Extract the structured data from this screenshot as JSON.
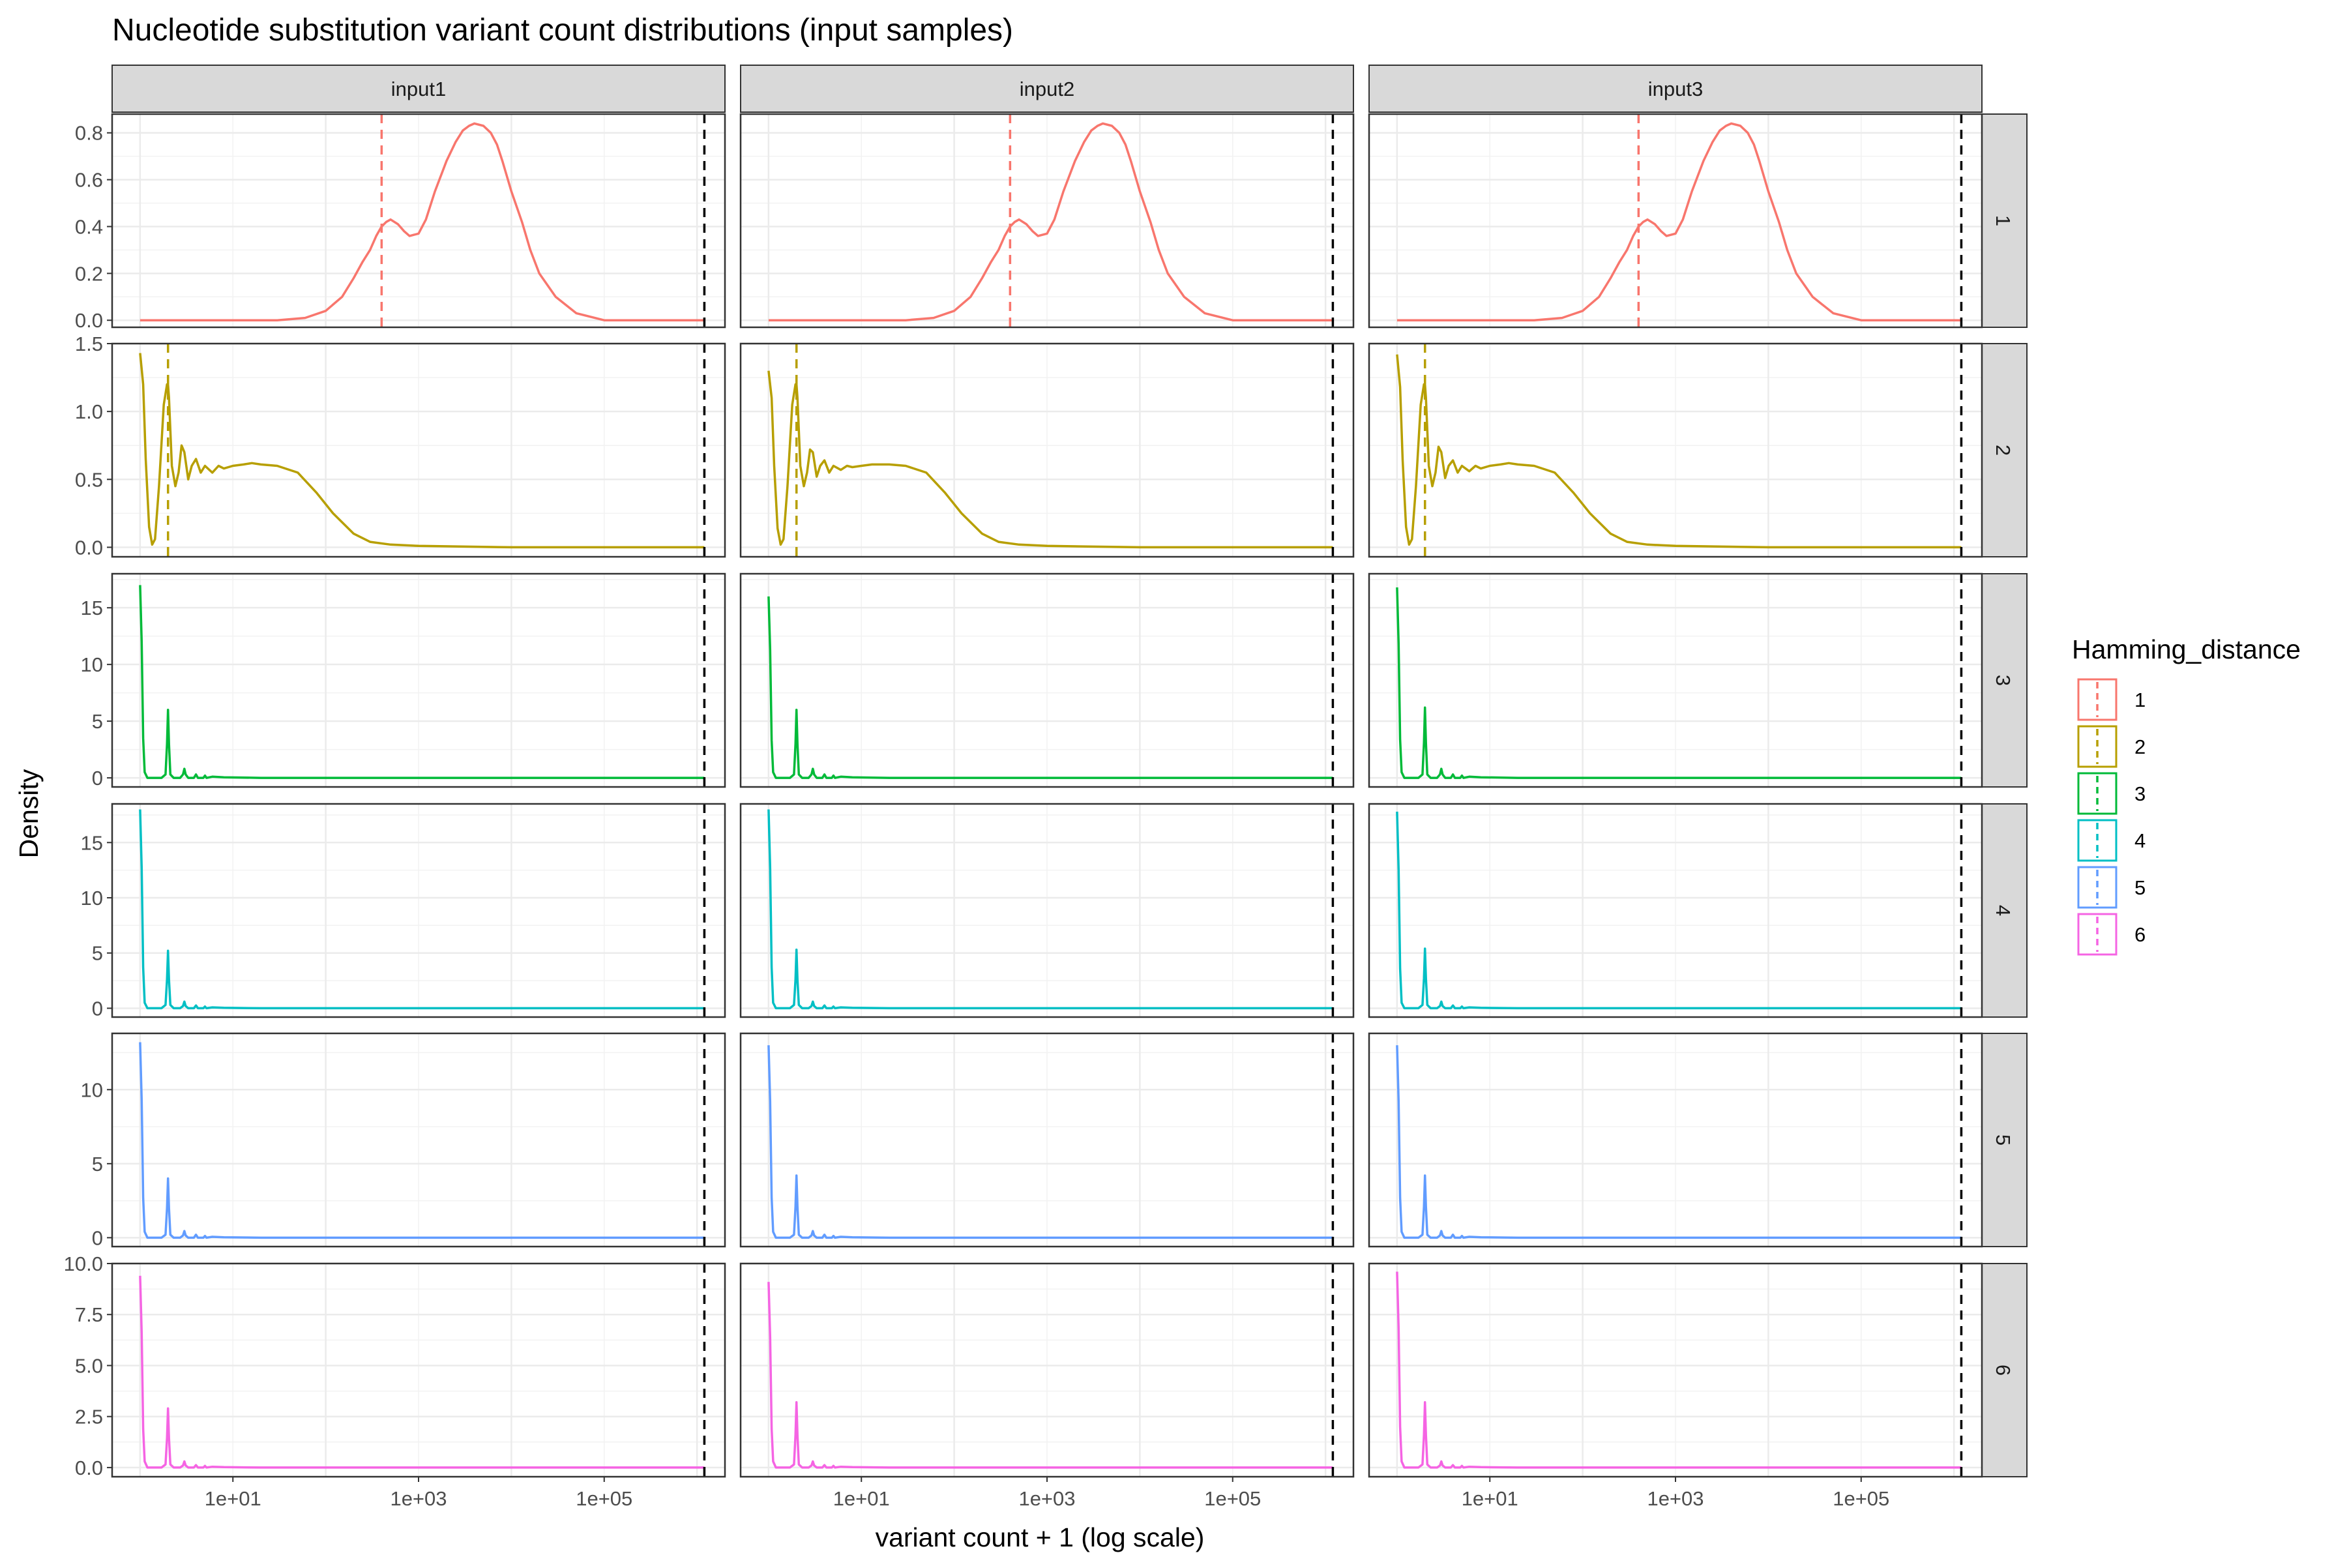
{
  "chart_data": {
    "type": "line",
    "chart_kind": "faceted density plot",
    "title": "Nucleotide substitution variant count distributions (input samples)",
    "xlabel": "variant count + 1 (log scale)",
    "ylabel": "Density",
    "x_scale": "log10",
    "xlim": [
      0.5,
      2000000
    ],
    "x_ticks": [
      10,
      1000,
      100000
    ],
    "x_tick_labels": [
      "1e+01",
      "1e+03",
      "1e+05"
    ],
    "grid": true,
    "theme": "bw",
    "column_facets": [
      "input1",
      "input2",
      "input3"
    ],
    "row_facets": [
      "1",
      "2",
      "3",
      "4",
      "5",
      "6"
    ],
    "legend": {
      "title": "Hamming_distance",
      "position": "right",
      "entries": [
        "1",
        "2",
        "3",
        "4",
        "5",
        "6"
      ],
      "colors": [
        "#F8766D",
        "#B79F00",
        "#00BA38",
        "#00BFC4",
        "#619CFF",
        "#F564E3"
      ],
      "line_style": "dashed"
    },
    "reference_line": {
      "x": 1200000,
      "color": "#000000",
      "style": "dashed"
    },
    "rows": [
      {
        "hamming_distance": "1",
        "color": "#F8766D",
        "ylim": [
          -0.03,
          0.88
        ],
        "y_ticks": [
          0.0,
          0.2,
          0.4,
          0.6,
          0.8
        ],
        "y_tick_labels": [
          "0.0",
          "0.2",
          "0.4",
          "0.6",
          "0.8"
        ],
        "median_line": 400,
        "x": [
          1,
          30,
          60,
          100,
          150,
          200,
          250,
          300,
          350,
          400,
          450,
          500,
          600,
          700,
          800,
          1000,
          1200,
          1500,
          2000,
          2500,
          3000,
          3500,
          4000,
          5000,
          6000,
          7000,
          8000,
          10000,
          13000,
          16000,
          20000,
          30000,
          50000,
          100000,
          1200000
        ],
        "series": [
          {
            "name": "input1",
            "values": [
              0.0,
              0.0,
              0.01,
              0.04,
              0.1,
              0.18,
              0.25,
              0.3,
              0.36,
              0.4,
              0.42,
              0.43,
              0.41,
              0.38,
              0.36,
              0.37,
              0.43,
              0.55,
              0.68,
              0.76,
              0.81,
              0.83,
              0.84,
              0.83,
              0.8,
              0.75,
              0.68,
              0.55,
              0.42,
              0.3,
              0.2,
              0.1,
              0.03,
              0.0,
              0.0
            ]
          },
          {
            "name": "input2",
            "values": [
              0.0,
              0.0,
              0.01,
              0.04,
              0.1,
              0.18,
              0.25,
              0.3,
              0.36,
              0.4,
              0.42,
              0.43,
              0.41,
              0.38,
              0.36,
              0.37,
              0.43,
              0.55,
              0.68,
              0.76,
              0.81,
              0.83,
              0.84,
              0.83,
              0.8,
              0.75,
              0.68,
              0.55,
              0.42,
              0.3,
              0.2,
              0.1,
              0.03,
              0.0,
              0.0
            ]
          },
          {
            "name": "input3",
            "values": [
              0.0,
              0.0,
              0.01,
              0.04,
              0.1,
              0.18,
              0.25,
              0.3,
              0.36,
              0.4,
              0.42,
              0.43,
              0.41,
              0.38,
              0.36,
              0.37,
              0.43,
              0.55,
              0.68,
              0.76,
              0.81,
              0.83,
              0.84,
              0.83,
              0.8,
              0.75,
              0.68,
              0.55,
              0.42,
              0.3,
              0.2,
              0.1,
              0.03,
              0.0,
              0.0
            ]
          }
        ]
      },
      {
        "hamming_distance": "2",
        "color": "#B79F00",
        "ylim": [
          -0.07,
          1.5
        ],
        "y_ticks": [
          0.0,
          0.5,
          1.0,
          1.5
        ],
        "y_tick_labels": [
          "0.0",
          "0.5",
          "1.0",
          "1.5"
        ],
        "median_line": 2,
        "x": [
          1,
          1.08,
          1.15,
          1.25,
          1.35,
          1.45,
          1.6,
          1.8,
          1.95,
          2,
          2.05,
          2.2,
          2.4,
          2.6,
          2.8,
          3,
          3.3,
          3.6,
          4,
          4.5,
          5,
          6,
          7,
          8,
          10,
          13,
          16,
          20,
          30,
          50,
          80,
          120,
          200,
          300,
          500,
          1000,
          10000,
          1200000
        ],
        "series": [
          {
            "name": "input1",
            "values": [
              1.43,
              1.2,
              0.65,
              0.15,
              0.02,
              0.06,
              0.45,
              1.05,
              1.2,
              1.2,
              1.1,
              0.6,
              0.45,
              0.55,
              0.75,
              0.7,
              0.5,
              0.6,
              0.65,
              0.55,
              0.6,
              0.55,
              0.6,
              0.58,
              0.6,
              0.61,
              0.62,
              0.61,
              0.6,
              0.55,
              0.4,
              0.25,
              0.1,
              0.04,
              0.02,
              0.01,
              0.0,
              0.0
            ]
          },
          {
            "name": "input2",
            "values": [
              1.3,
              1.1,
              0.6,
              0.14,
              0.02,
              0.06,
              0.45,
              1.05,
              1.2,
              1.2,
              1.1,
              0.6,
              0.45,
              0.55,
              0.72,
              0.7,
              0.52,
              0.6,
              0.64,
              0.55,
              0.6,
              0.57,
              0.6,
              0.59,
              0.6,
              0.61,
              0.61,
              0.61,
              0.6,
              0.55,
              0.4,
              0.25,
              0.1,
              0.04,
              0.02,
              0.01,
              0.0,
              0.0
            ]
          },
          {
            "name": "input3",
            "values": [
              1.42,
              1.18,
              0.64,
              0.15,
              0.02,
              0.06,
              0.45,
              1.05,
              1.2,
              1.2,
              1.1,
              0.6,
              0.45,
              0.55,
              0.74,
              0.7,
              0.51,
              0.6,
              0.64,
              0.55,
              0.6,
              0.56,
              0.6,
              0.58,
              0.6,
              0.61,
              0.62,
              0.61,
              0.6,
              0.55,
              0.4,
              0.25,
              0.1,
              0.04,
              0.02,
              0.01,
              0.0,
              0.0
            ]
          }
        ]
      },
      {
        "hamming_distance": "3",
        "color": "#00BA38",
        "ylim": [
          -0.8,
          18
        ],
        "y_ticks": [
          0,
          5,
          10,
          15
        ],
        "y_tick_labels": [
          "0",
          "5",
          "10",
          "15"
        ],
        "x": [
          1,
          1.04,
          1.08,
          1.12,
          1.2,
          1.4,
          1.7,
          1.88,
          1.95,
          2,
          2.05,
          2.12,
          2.3,
          2.7,
          2.9,
          3,
          3.1,
          3.3,
          3.8,
          4,
          4.2,
          4.8,
          5,
          5.2,
          6,
          8,
          20,
          1200000
        ],
        "series": [
          {
            "name": "input1",
            "values": [
              17.0,
              12.0,
              3.5,
              0.5,
              0.0,
              0.0,
              0.0,
              0.3,
              3.0,
              6.0,
              3.0,
              0.3,
              0.0,
              0.0,
              0.3,
              0.8,
              0.3,
              0.0,
              0.0,
              0.3,
              0.0,
              0.0,
              0.2,
              0.0,
              0.1,
              0.05,
              0.0,
              0.0
            ]
          },
          {
            "name": "input2",
            "values": [
              16.0,
              11.3,
              3.3,
              0.5,
              0.0,
              0.0,
              0.0,
              0.3,
              3.0,
              6.0,
              3.0,
              0.3,
              0.0,
              0.0,
              0.3,
              0.8,
              0.3,
              0.0,
              0.0,
              0.3,
              0.0,
              0.0,
              0.2,
              0.0,
              0.1,
              0.05,
              0.0,
              0.0
            ]
          },
          {
            "name": "input3",
            "values": [
              16.8,
              11.8,
              3.4,
              0.5,
              0.0,
              0.0,
              0.0,
              0.3,
              3.1,
              6.2,
              3.1,
              0.3,
              0.0,
              0.0,
              0.3,
              0.8,
              0.3,
              0.0,
              0.0,
              0.3,
              0.0,
              0.0,
              0.2,
              0.0,
              0.1,
              0.05,
              0.0,
              0.0
            ]
          }
        ]
      },
      {
        "hamming_distance": "4",
        "color": "#00BFC4",
        "ylim": [
          -0.8,
          18.5
        ],
        "y_ticks": [
          0,
          5,
          10,
          15
        ],
        "y_tick_labels": [
          "0",
          "5",
          "10",
          "15"
        ],
        "x": [
          1,
          1.04,
          1.08,
          1.12,
          1.2,
          1.4,
          1.7,
          1.88,
          1.95,
          2,
          2.05,
          2.12,
          2.3,
          2.7,
          2.9,
          3,
          3.1,
          3.3,
          3.8,
          4,
          4.2,
          4.8,
          5,
          5.2,
          6,
          8,
          20,
          1200000
        ],
        "series": [
          {
            "name": "input1",
            "values": [
              18.0,
              12.7,
              3.7,
              0.5,
              0.0,
              0.0,
              0.0,
              0.3,
              2.6,
              5.2,
              2.6,
              0.3,
              0.0,
              0.0,
              0.2,
              0.6,
              0.2,
              0.0,
              0.0,
              0.25,
              0.0,
              0.0,
              0.15,
              0.0,
              0.08,
              0.04,
              0.0,
              0.0
            ]
          },
          {
            "name": "input2",
            "values": [
              18.0,
              12.7,
              3.7,
              0.5,
              0.0,
              0.0,
              0.0,
              0.3,
              2.6,
              5.3,
              2.6,
              0.3,
              0.0,
              0.0,
              0.2,
              0.6,
              0.2,
              0.0,
              0.0,
              0.25,
              0.0,
              0.0,
              0.15,
              0.0,
              0.08,
              0.04,
              0.0,
              0.0
            ]
          },
          {
            "name": "input3",
            "values": [
              17.8,
              12.5,
              3.6,
              0.5,
              0.0,
              0.0,
              0.0,
              0.3,
              2.7,
              5.4,
              2.7,
              0.3,
              0.0,
              0.0,
              0.2,
              0.6,
              0.2,
              0.0,
              0.0,
              0.25,
              0.0,
              0.0,
              0.15,
              0.0,
              0.08,
              0.04,
              0.0,
              0.0
            ]
          }
        ]
      },
      {
        "hamming_distance": "5",
        "color": "#619CFF",
        "ylim": [
          -0.6,
          13.8
        ],
        "y_ticks": [
          0,
          5,
          10
        ],
        "y_tick_labels": [
          "0",
          "5",
          "10"
        ],
        "x": [
          1,
          1.04,
          1.08,
          1.12,
          1.2,
          1.4,
          1.7,
          1.88,
          1.95,
          2,
          2.05,
          2.12,
          2.3,
          2.7,
          2.9,
          3,
          3.1,
          3.3,
          3.8,
          4,
          4.2,
          4.8,
          5,
          5.2,
          6,
          8,
          20,
          1200000
        ],
        "series": [
          {
            "name": "input1",
            "values": [
              13.2,
              9.3,
              2.7,
              0.4,
              0.0,
              0.0,
              0.0,
              0.2,
              2.0,
              4.0,
              2.0,
              0.2,
              0.0,
              0.0,
              0.15,
              0.45,
              0.15,
              0.0,
              0.0,
              0.2,
              0.0,
              0.0,
              0.12,
              0.0,
              0.06,
              0.03,
              0.0,
              0.0
            ]
          },
          {
            "name": "input2",
            "values": [
              13.0,
              9.2,
              2.7,
              0.4,
              0.0,
              0.0,
              0.0,
              0.2,
              2.1,
              4.2,
              2.1,
              0.2,
              0.0,
              0.0,
              0.15,
              0.45,
              0.15,
              0.0,
              0.0,
              0.2,
              0.0,
              0.0,
              0.12,
              0.0,
              0.06,
              0.03,
              0.0,
              0.0
            ]
          },
          {
            "name": "input3",
            "values": [
              13.0,
              9.2,
              2.7,
              0.4,
              0.0,
              0.0,
              0.0,
              0.2,
              2.1,
              4.2,
              2.1,
              0.2,
              0.0,
              0.0,
              0.15,
              0.45,
              0.15,
              0.0,
              0.0,
              0.2,
              0.0,
              0.0,
              0.12,
              0.0,
              0.06,
              0.03,
              0.0,
              0.0
            ]
          }
        ]
      },
      {
        "hamming_distance": "6",
        "color": "#F564E3",
        "ylim": [
          -0.45,
          10.0
        ],
        "y_ticks": [
          0.0,
          2.5,
          5.0,
          7.5,
          10.0
        ],
        "y_tick_labels": [
          "0.0",
          "2.5",
          "5.0",
          "7.5",
          "10.0"
        ],
        "x": [
          1,
          1.04,
          1.08,
          1.12,
          1.2,
          1.4,
          1.7,
          1.88,
          1.95,
          2,
          2.05,
          2.12,
          2.3,
          2.7,
          2.9,
          3,
          3.1,
          3.3,
          3.8,
          4,
          4.2,
          4.8,
          5,
          5.2,
          6,
          8,
          20,
          1200000
        ],
        "series": [
          {
            "name": "input1",
            "values": [
              9.4,
              6.6,
              1.9,
              0.3,
              0.0,
              0.0,
              0.0,
              0.15,
              1.45,
              2.9,
              1.45,
              0.15,
              0.0,
              0.0,
              0.1,
              0.3,
              0.1,
              0.0,
              0.0,
              0.12,
              0.0,
              0.0,
              0.08,
              0.0,
              0.04,
              0.02,
              0.0,
              0.0
            ]
          },
          {
            "name": "input2",
            "values": [
              9.1,
              6.4,
              1.9,
              0.3,
              0.0,
              0.0,
              0.0,
              0.15,
              1.6,
              3.2,
              1.6,
              0.15,
              0.0,
              0.0,
              0.1,
              0.3,
              0.1,
              0.0,
              0.0,
              0.12,
              0.0,
              0.0,
              0.08,
              0.0,
              0.04,
              0.02,
              0.0,
              0.0
            ]
          },
          {
            "name": "input3",
            "values": [
              9.6,
              6.8,
              2.0,
              0.3,
              0.0,
              0.0,
              0.0,
              0.15,
              1.6,
              3.2,
              1.6,
              0.15,
              0.0,
              0.0,
              0.1,
              0.3,
              0.1,
              0.0,
              0.0,
              0.12,
              0.0,
              0.0,
              0.08,
              0.0,
              0.04,
              0.02,
              0.0,
              0.0
            ]
          }
        ]
      }
    ]
  }
}
